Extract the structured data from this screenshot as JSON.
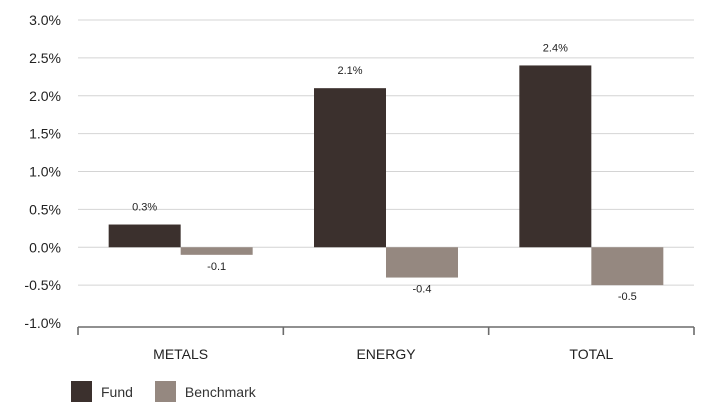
{
  "chart_data": {
    "type": "bar",
    "categories": [
      "METALS",
      "ENERGY",
      "TOTAL"
    ],
    "series": [
      {
        "name": "Fund",
        "values": [
          0.3,
          2.1,
          2.4
        ],
        "labels": [
          "0.3%",
          "2.1%",
          "2.4%"
        ],
        "color": "#3b302d"
      },
      {
        "name": "Benchmark",
        "values": [
          -0.1,
          -0.4,
          -0.5
        ],
        "labels": [
          "-0.1",
          "-0.4",
          "-0.5"
        ],
        "color": "#958880"
      }
    ],
    "ylim": [
      -1.0,
      3.0
    ],
    "yticks": [
      3.0,
      2.5,
      2.0,
      1.5,
      1.0,
      0.5,
      0.0,
      -0.5,
      -1.0
    ],
    "ytick_labels": [
      "3.0%",
      "2.5%",
      "2.0%",
      "1.5%",
      "1.0%",
      "0.5%",
      "0.0%",
      "-0.5%",
      "-1.0%"
    ],
    "grid": true,
    "legend_position": "bottom-left",
    "title": "",
    "xlabel": "",
    "ylabel": ""
  }
}
